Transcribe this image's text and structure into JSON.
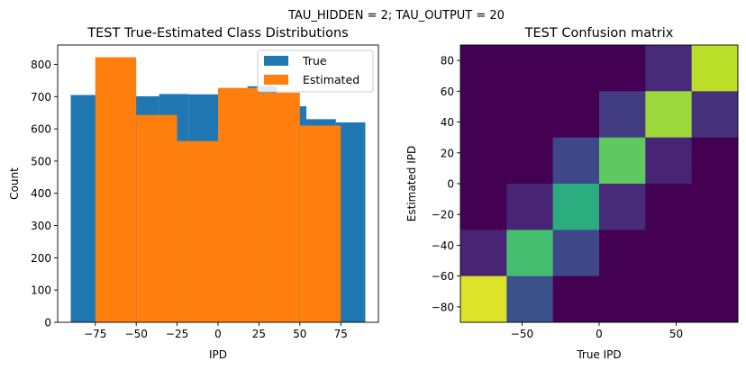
{
  "suptitle": "TAU_HIDDEN = 2; TAU_OUTPUT = 20",
  "chart_data": [
    {
      "type": "bar",
      "title": "TEST True-Estimated Class Distributions",
      "xlabel": "IPD",
      "ylabel": "Count",
      "xlim": [
        -98,
        98
      ],
      "ylim": [
        0,
        860
      ],
      "xticks": [
        -75,
        -50,
        -25,
        0,
        25,
        50,
        75
      ],
      "xtick_labels": [
        "−75",
        "−50",
        "−25",
        "0",
        "25",
        "50",
        "75"
      ],
      "yticks": [
        0,
        100,
        200,
        300,
        400,
        500,
        600,
        700,
        800
      ],
      "legend": {
        "position": "top-right",
        "entries": [
          "True",
          "Estimated"
        ]
      },
      "series": [
        {
          "name": "True",
          "color": "#1f77b4",
          "bin_edges": [
            -90,
            -72,
            -54,
            -36,
            -18,
            0,
            18,
            36,
            54,
            72,
            90
          ],
          "values": [
            705,
            690,
            701,
            708,
            707,
            722,
            732,
            670,
            630,
            620
          ]
        },
        {
          "name": "Estimated",
          "color": "#ff7f0e",
          "bin_edges": [
            -75,
            -50,
            -25,
            0,
            25,
            50,
            75
          ],
          "values": [
            822,
            643,
            562,
            727,
            712,
            610
          ]
        }
      ]
    },
    {
      "type": "heatmap",
      "title": "TEST Confusion matrix",
      "xlabel": "True IPD",
      "ylabel": "Estimated IPD",
      "xlim": [
        -90,
        90
      ],
      "ylim": [
        -90,
        90
      ],
      "xticks": [
        -50,
        0,
        50
      ],
      "xtick_labels": [
        "−50",
        "0",
        "50"
      ],
      "yticks": [
        -80,
        -60,
        -40,
        -20,
        0,
        20,
        40,
        60,
        80
      ],
      "ytick_labels": [
        "−80",
        "−60",
        "−40",
        "−20",
        "0",
        "20",
        "40",
        "60",
        "80"
      ],
      "classes": 6,
      "matrix_rows_top_to_bottom": [
        [
          0.0,
          0.0,
          0.0,
          0.0,
          0.12,
          0.9
        ],
        [
          0.0,
          0.0,
          0.0,
          0.18,
          0.85,
          0.14
        ],
        [
          0.0,
          0.0,
          0.22,
          0.75,
          0.1,
          0.0
        ],
        [
          0.0,
          0.1,
          0.62,
          0.12,
          0.0,
          0.0
        ],
        [
          0.1,
          0.7,
          0.22,
          0.0,
          0.0,
          0.0
        ],
        [
          0.95,
          0.25,
          0.0,
          0.0,
          0.0,
          0.0
        ]
      ]
    }
  ]
}
